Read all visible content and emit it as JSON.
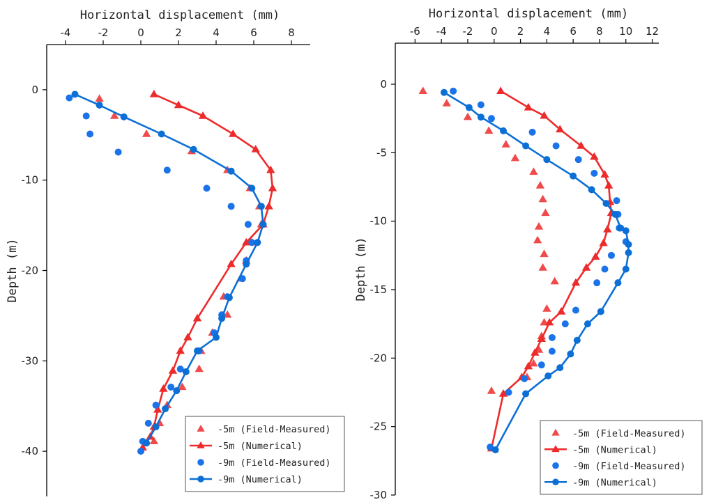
{
  "chart_data": [
    {
      "type": "scatter",
      "xlabel": "Horizontal displacement (mm)",
      "ylabel": "Depth (m)",
      "xlim": [
        -5,
        9
      ],
      "ylim": [
        -45,
        5
      ],
      "x_ticks": [
        -4,
        -2,
        0,
        2,
        4,
        6,
        8
      ],
      "y_ticks": [
        0,
        -10,
        -20,
        -30,
        -40
      ],
      "x_axis_position": "top",
      "grid": false,
      "legend_position": "bottom-right",
      "series": [
        {
          "name": "-5m (Field-Measured)",
          "kind": "scatter",
          "marker": "triangle",
          "color": "#f04b4b",
          "points": [
            [
              -2.2,
              -1
            ],
            [
              -1.4,
              -2.9
            ],
            [
              0.3,
              -4.9
            ],
            [
              2.7,
              -6.8
            ],
            [
              4.6,
              -8.9
            ],
            [
              5.8,
              -10.9
            ],
            [
              6.3,
              -12.9
            ],
            [
              6.4,
              -14.9
            ],
            [
              5.9,
              -16.9
            ],
            [
              5.6,
              -18.9
            ],
            [
              5.3,
              -20.9
            ],
            [
              4.4,
              -22.9
            ],
            [
              4.6,
              -24.9
            ],
            [
              3.8,
              -26.9
            ],
            [
              3.2,
              -28.9
            ],
            [
              3.1,
              -30.9
            ],
            [
              2.2,
              -32.9
            ],
            [
              1.4,
              -34.9
            ],
            [
              1,
              -36.9
            ],
            [
              0.7,
              -38.9
            ]
          ]
        },
        {
          "name": "-5m (Numerical)",
          "kind": "line",
          "marker": "triangle",
          "color": "#ee2b2b",
          "points": [
            [
              0.7,
              -0.5
            ],
            [
              2,
              -1.7
            ],
            [
              3.3,
              -2.9
            ],
            [
              4.9,
              -4.9
            ],
            [
              6.1,
              -6.6
            ],
            [
              6.9,
              -8.9
            ],
            [
              7,
              -10.9
            ],
            [
              6.8,
              -12.9
            ],
            [
              6.5,
              -14.9
            ],
            [
              5.6,
              -16.9
            ],
            [
              4.8,
              -19.3
            ],
            [
              3,
              -25.3
            ],
            [
              2.5,
              -27.4
            ],
            [
              2.1,
              -28.9
            ],
            [
              1.7,
              -31.1
            ],
            [
              1.2,
              -33.1
            ],
            [
              0.9,
              -35.4
            ],
            [
              0.7,
              -37.3
            ],
            [
              0.5,
              -38.4
            ],
            [
              0.1,
              -39.6
            ]
          ]
        },
        {
          "name": "-9m (Field-Measured)",
          "kind": "scatter",
          "marker": "circle",
          "color": "#1a73e8",
          "points": [
            [
              -3.8,
              -0.9
            ],
            [
              -2.9,
              -2.9
            ],
            [
              -2.7,
              -4.9
            ],
            [
              -1.2,
              -6.9
            ],
            [
              1.4,
              -8.9
            ],
            [
              3.5,
              -10.9
            ],
            [
              4.8,
              -12.9
            ],
            [
              5.7,
              -14.9
            ],
            [
              5.9,
              -16.9
            ],
            [
              5.6,
              -18.9
            ],
            [
              5.4,
              -20.9
            ],
            [
              4.6,
              -22.9
            ],
            [
              4.3,
              -24.9
            ],
            [
              3.9,
              -26.9
            ],
            [
              3.1,
              -28.9
            ],
            [
              2.1,
              -30.9
            ],
            [
              1.6,
              -32.9
            ],
            [
              0.8,
              -34.9
            ],
            [
              0.4,
              -36.9
            ],
            [
              0.1,
              -38.9
            ],
            [
              0,
              -40
            ]
          ]
        },
        {
          "name": "-9m (Numerical)",
          "kind": "line",
          "marker": "circle",
          "color": "#0b6fd6",
          "points": [
            [
              -3.5,
              -0.5
            ],
            [
              -2.2,
              -1.7
            ],
            [
              -0.9,
              -3
            ],
            [
              1.1,
              -4.9
            ],
            [
              2.8,
              -6.6
            ],
            [
              4.8,
              -9
            ],
            [
              5.9,
              -10.9
            ],
            [
              6.4,
              -12.9
            ],
            [
              6.5,
              -14.9
            ],
            [
              6.2,
              -16.9
            ],
            [
              5.6,
              -19.3
            ],
            [
              4.7,
              -23
            ],
            [
              4.3,
              -25.3
            ],
            [
              4,
              -27.4
            ],
            [
              3,
              -28.9
            ],
            [
              2.4,
              -31.2
            ],
            [
              1.9,
              -33.3
            ],
            [
              1.3,
              -35.3
            ],
            [
              0.8,
              -37.3
            ],
            [
              0.3,
              -39.1
            ]
          ]
        }
      ]
    },
    {
      "type": "scatter",
      "xlabel": "Horizontal displacement (mm)",
      "ylabel": "Depth (m)",
      "xlim": [
        -7.5,
        12.5
      ],
      "ylim": [
        -30,
        3
      ],
      "x_ticks": [
        -6,
        -4,
        -2,
        0,
        2,
        4,
        6,
        8,
        10,
        12
      ],
      "y_ticks": [
        0,
        -5,
        -10,
        -15,
        -20,
        -25,
        -30
      ],
      "x_axis_position": "top",
      "grid": false,
      "legend_position": "bottom-right",
      "series": [
        {
          "name": "-5m (Field-Measured)",
          "kind": "scatter",
          "marker": "triangle",
          "color": "#f04b4b",
          "points": [
            [
              -5.4,
              -0.5
            ],
            [
              -3.6,
              -1.4
            ],
            [
              -2,
              -2.4
            ],
            [
              -0.4,
              -3.4
            ],
            [
              0.9,
              -4.4
            ],
            [
              1.6,
              -5.4
            ],
            [
              3,
              -6.4
            ],
            [
              3.5,
              -7.4
            ],
            [
              3.7,
              -8.4
            ],
            [
              3.9,
              -9.4
            ],
            [
              3.4,
              -10.4
            ],
            [
              3.3,
              -11.4
            ],
            [
              3.8,
              -12.4
            ],
            [
              3.7,
              -13.4
            ],
            [
              4.6,
              -14.4
            ],
            [
              4,
              -16.4
            ],
            [
              3.8,
              -17.4
            ],
            [
              3.6,
              -18.4
            ],
            [
              3.4,
              -19.4
            ],
            [
              3,
              -20.4
            ],
            [
              2.5,
              -21.4
            ],
            [
              -0.2,
              -22.4
            ]
          ]
        },
        {
          "name": "-5m (Numerical)",
          "kind": "line",
          "marker": "triangle",
          "color": "#ee2b2b",
          "points": [
            [
              0.5,
              -0.5
            ],
            [
              2.6,
              -1.7
            ],
            [
              3.8,
              -2.3
            ],
            [
              5,
              -3.3
            ],
            [
              6.6,
              -4.5
            ],
            [
              7.6,
              -5.3
            ],
            [
              8.4,
              -6.6
            ],
            [
              8.7,
              -7.4
            ],
            [
              8.8,
              -8.6
            ],
            [
              8.9,
              -9.4
            ],
            [
              8.6,
              -10.6
            ],
            [
              8.3,
              -11.6
            ],
            [
              7.7,
              -12.6
            ],
            [
              7,
              -13.4
            ],
            [
              6.2,
              -14.5
            ],
            [
              5.1,
              -16.6
            ],
            [
              4.2,
              -17.4
            ],
            [
              3.6,
              -18.6
            ],
            [
              3.1,
              -19.6
            ],
            [
              2.6,
              -20.6
            ],
            [
              2.1,
              -21.4
            ],
            [
              0.7,
              -22.6
            ],
            [
              -0.2,
              -26.6
            ]
          ]
        },
        {
          "name": "-9m (Field-Measured)",
          "kind": "scatter",
          "marker": "circle",
          "color": "#1a73e8",
          "points": [
            [
              -3.1,
              -0.5
            ],
            [
              -1,
              -1.5
            ],
            [
              -0.2,
              -2.5
            ],
            [
              2.9,
              -3.5
            ],
            [
              4.7,
              -4.5
            ],
            [
              6.4,
              -5.5
            ],
            [
              7.6,
              -6.5
            ],
            [
              9.3,
              -8.5
            ],
            [
              9.4,
              -9.5
            ],
            [
              9.5,
              -10.5
            ],
            [
              10,
              -11.5
            ],
            [
              8.9,
              -12.5
            ],
            [
              8.4,
              -13.5
            ],
            [
              7.8,
              -14.5
            ],
            [
              6.2,
              -16.5
            ],
            [
              5.4,
              -17.5
            ],
            [
              4.4,
              -18.5
            ],
            [
              4.4,
              -19.5
            ],
            [
              3.6,
              -20.5
            ],
            [
              2.3,
              -21.5
            ],
            [
              1.1,
              -22.5
            ],
            [
              -0.3,
              -26.5
            ]
          ]
        },
        {
          "name": "-9m (Numerical)",
          "kind": "line",
          "marker": "circle",
          "color": "#0b6fd6",
          "points": [
            [
              -3.8,
              -0.6
            ],
            [
              -1.9,
              -1.7
            ],
            [
              -1,
              -2.4
            ],
            [
              0.7,
              -3.4
            ],
            [
              2.4,
              -4.5
            ],
            [
              4,
              -5.5
            ],
            [
              6,
              -6.7
            ],
            [
              7.4,
              -7.7
            ],
            [
              8.5,
              -8.7
            ],
            [
              9.2,
              -9.5
            ],
            [
              9.6,
              -10.5
            ],
            [
              10,
              -10.7
            ],
            [
              10.2,
              -11.7
            ],
            [
              10.2,
              -12.3
            ],
            [
              10,
              -13.5
            ],
            [
              9.4,
              -14.5
            ],
            [
              8.1,
              -16.6
            ],
            [
              7.1,
              -17.5
            ],
            [
              6.3,
              -18.7
            ],
            [
              5.8,
              -19.7
            ],
            [
              5,
              -20.7
            ],
            [
              4.1,
              -21.3
            ],
            [
              2.4,
              -22.6
            ],
            [
              0.1,
              -26.7
            ]
          ]
        }
      ]
    }
  ]
}
